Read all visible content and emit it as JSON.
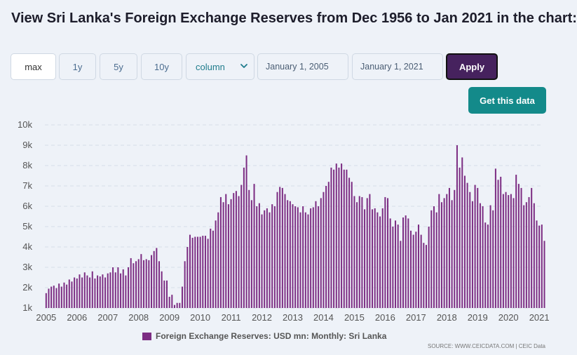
{
  "header": {
    "title": "View Sri Lanka's Foreign Exchange Reserves from Dec 1956 to Jan 2021 in the chart:"
  },
  "controls": {
    "ranges": [
      "max",
      "1y",
      "5y",
      "10y"
    ],
    "active_range": "max",
    "chart_type_value": "column",
    "date_from": "January 1, 2005",
    "date_to": "January 1, 2021",
    "apply_label": "Apply",
    "get_data_label": "Get this data"
  },
  "colors": {
    "bar": "#7c2d83",
    "apply_bg": "#46225e",
    "get_data_bg": "#138a8a"
  },
  "footer": {
    "source": "SOURCE: WWW.CEICDATA.COM | CEIC Data"
  },
  "chart_data": {
    "type": "bar",
    "title": "",
    "xlabel": "",
    "ylabel": "",
    "ylim": [
      1000,
      10000
    ],
    "yticks": [
      "1k",
      "2k",
      "3k",
      "4k",
      "5k",
      "6k",
      "7k",
      "8k",
      "9k",
      "10k"
    ],
    "ytick_values": [
      1000,
      2000,
      3000,
      4000,
      5000,
      6000,
      7000,
      8000,
      9000,
      10000
    ],
    "xticks": [
      "2005",
      "2006",
      "2007",
      "2008",
      "2009",
      "2010",
      "2011",
      "2012",
      "2013",
      "2014",
      "2015",
      "2016",
      "2017",
      "2018",
      "2019",
      "2020",
      "2021"
    ],
    "grid": true,
    "legend_position": "bottom",
    "series": [
      {
        "name": "Foreign Exchange Reserves: USD mn: Monthly: Sri Lanka",
        "start": "2005-01",
        "frequency": "monthly",
        "values": [
          1730,
          1950,
          2050,
          2100,
          1980,
          2200,
          2050,
          2250,
          2150,
          2400,
          2300,
          2500,
          2450,
          2650,
          2500,
          2750,
          2600,
          2500,
          2800,
          2450,
          2600,
          2550,
          2650,
          2500,
          2700,
          2750,
          3000,
          2750,
          3000,
          2700,
          2900,
          2600,
          3000,
          3450,
          3200,
          3300,
          3400,
          3650,
          3350,
          3400,
          3350,
          3600,
          3800,
          3950,
          3300,
          2800,
          2350,
          2350,
          1550,
          1650,
          1150,
          1250,
          1250,
          2050,
          3300,
          4000,
          4600,
          4450,
          4500,
          4500,
          4500,
          4550,
          4550,
          4400,
          4900,
          4800,
          5300,
          5700,
          6450,
          6200,
          6600,
          6100,
          6350,
          6650,
          6750,
          6500,
          7050,
          7900,
          8500,
          6800,
          6300,
          7100,
          6000,
          6150,
          5600,
          5800,
          5900,
          5700,
          6100,
          6000,
          6700,
          6950,
          6900,
          6600,
          6300,
          6250,
          6100,
          6000,
          5950,
          5700,
          6000,
          5700,
          5600,
          5900,
          5950,
          6250,
          6000,
          6400,
          6700,
          7000,
          7200,
          7900,
          7800,
          8100,
          7900,
          8100,
          7800,
          7800,
          7400,
          7200,
          6500,
          6200,
          6500,
          6450,
          5850,
          6400,
          6600,
          5850,
          5900,
          5700,
          5500,
          5900,
          6450,
          6400,
          5400,
          5000,
          5300,
          5100,
          4300,
          5450,
          5550,
          5400,
          4800,
          4600,
          4750,
          5100,
          4600,
          4200,
          4100,
          5000,
          5800,
          6000,
          5700,
          6600,
          6200,
          6400,
          6600,
          6900,
          6300,
          6800,
          9000,
          7900,
          8400,
          7500,
          7150,
          6700,
          6250,
          7050,
          6900,
          6150,
          6000,
          5200,
          5100,
          6050,
          5800,
          7850,
          7300,
          7450,
          6600,
          6700,
          6550,
          6600,
          6400,
          7550,
          7100,
          6900,
          6050,
          6200,
          6450,
          6900,
          6150,
          5300,
          5050,
          5100,
          4300
        ]
      }
    ]
  }
}
